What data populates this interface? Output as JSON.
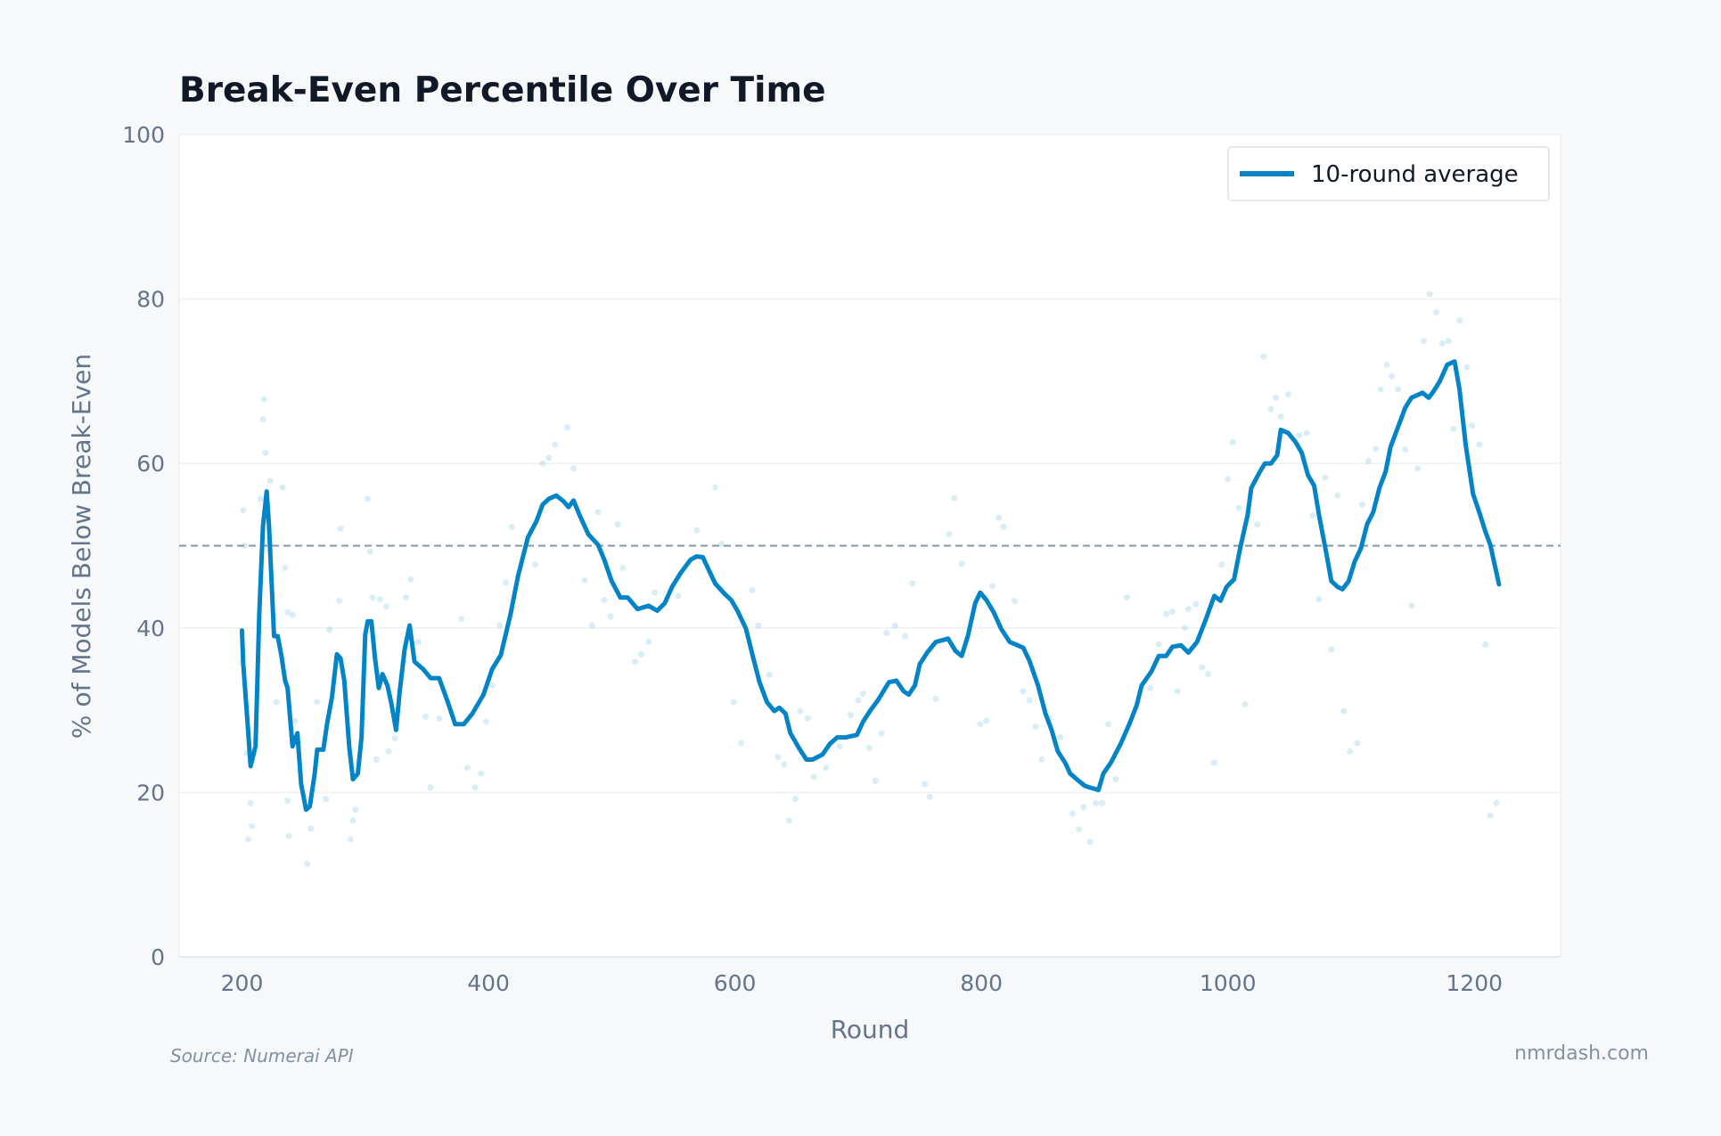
{
  "chart_data": {
    "type": "line",
    "title": "Break-Even Percentile Over Time",
    "xlabel": "Round",
    "ylabel": "% of Models Below Break-Even",
    "xlim": [
      149,
      1270
    ],
    "ylim": [
      0,
      100
    ],
    "xticks": [
      200,
      400,
      600,
      800,
      1000,
      1200
    ],
    "yticks": [
      0,
      20,
      40,
      60,
      80,
      100
    ],
    "grid": "horizontal",
    "legend_position": "top-right",
    "reference_line": {
      "y": 50,
      "style": "dashed",
      "color": "#8a95a3"
    },
    "series": [
      {
        "name": "10-round average",
        "type": "line",
        "color": "#0284c7",
        "x": [
          200,
          201,
          204,
          207,
          211,
          214,
          217,
          220,
          222,
          226,
          229,
          232,
          235,
          237,
          241,
          245,
          248,
          252,
          255,
          259,
          261,
          266,
          269,
          273,
          277,
          280,
          283,
          287,
          290,
          294,
          297,
          300,
          302,
          305,
          308,
          311,
          314,
          318,
          321,
          325,
          328,
          332,
          336,
          340,
          347,
          353,
          360,
          367,
          373,
          380,
          387,
          396,
          403,
          410,
          418,
          424,
          432,
          439,
          444,
          449,
          455,
          461,
          465,
          469,
          474,
          481,
          489,
          494,
          500,
          507,
          513,
          521,
          530,
          537,
          543,
          549,
          556,
          564,
          569,
          574,
          578,
          584,
          592,
          597,
          602,
          609,
          615,
          620,
          626,
          632,
          636,
          641,
          645,
          652,
          658,
          663,
          671,
          677,
          683,
          690,
          699,
          704,
          710,
          716,
          725,
          731,
          737,
          741,
          746,
          750,
          756,
          763,
          773,
          779,
          784,
          789,
          795,
          799,
          804,
          810,
          816,
          823,
          834,
          839,
          846,
          852,
          857,
          862,
          868,
          872,
          879,
          884,
          888,
          895,
          899,
          905,
          913,
          920,
          926,
          930,
          938,
          944,
          950,
          955,
          962,
          968,
          975,
          982,
          989,
          994,
          999,
          1005,
          1010,
          1016,
          1019,
          1026,
          1030,
          1035,
          1040,
          1043,
          1049,
          1055,
          1060,
          1065,
          1070,
          1074,
          1080,
          1084,
          1089,
          1093,
          1098,
          1103,
          1108,
          1113,
          1118,
          1123,
          1128,
          1132,
          1138,
          1144,
          1149,
          1155,
          1158,
          1163,
          1167,
          1172,
          1178,
          1184,
          1188,
          1193,
          1199,
          1204,
          1209,
          1213,
          1220
        ],
        "y": [
          39.7,
          35.7,
          29.6,
          23.2,
          25.6,
          41.7,
          52.3,
          56.6,
          52.3,
          39,
          39,
          36.6,
          33.6,
          32.7,
          25.6,
          27.2,
          21,
          17.9,
          18.3,
          22.3,
          25.2,
          25.2,
          28.3,
          31.6,
          36.8,
          36.3,
          33.6,
          25.6,
          21.6,
          22.3,
          26.7,
          39.2,
          40.8,
          40.8,
          36.3,
          32.7,
          34.4,
          33,
          31,
          27.6,
          32.3,
          37.4,
          40.3,
          35.9,
          35,
          33.9,
          33.9,
          31,
          28.3,
          28.3,
          29.6,
          31.9,
          35,
          36.7,
          41.7,
          46.3,
          51,
          53,
          55,
          55.7,
          56.1,
          55.4,
          54.7,
          55.5,
          53.7,
          51.4,
          50.1,
          48.3,
          45.7,
          43.7,
          43.7,
          42.3,
          42.7,
          42.1,
          43,
          45,
          46.7,
          48.3,
          48.7,
          48.6,
          47.3,
          45.4,
          44.1,
          43.4,
          42.1,
          39.9,
          36.3,
          33.4,
          31,
          29.9,
          30.3,
          29.6,
          27.2,
          25.4,
          24,
          24,
          24.6,
          25.9,
          26.7,
          26.7,
          27,
          28.6,
          30,
          31.2,
          33.4,
          33.6,
          32.3,
          31.9,
          33,
          35.6,
          37,
          38.3,
          38.7,
          37.2,
          36.6,
          39,
          43,
          44.3,
          43.4,
          41.9,
          39.9,
          38.3,
          37.6,
          36,
          33,
          29.6,
          27.6,
          25,
          23.6,
          22.3,
          21.4,
          20.8,
          20.6,
          20.3,
          22.3,
          23.6,
          25.9,
          28.3,
          30.6,
          33,
          34.7,
          36.6,
          36.6,
          37.7,
          37.9,
          37,
          38.3,
          41,
          43.9,
          43.3,
          45,
          45.9,
          49.7,
          53.7,
          57,
          59,
          60,
          60,
          61,
          64.1,
          63.7,
          62.6,
          61.3,
          58.6,
          57.3,
          53.7,
          49,
          45.7,
          45,
          44.7,
          45.7,
          48.1,
          49.7,
          52.6,
          54.1,
          57,
          59,
          62,
          64.4,
          66.8,
          68,
          68.4,
          68.6,
          68,
          68.8,
          70,
          72,
          72.4,
          69,
          62.3,
          56.3,
          54.1,
          51.7,
          50.1,
          45.3
        ]
      },
      {
        "type": "scatter",
        "color": "#0284c7",
        "opacity": 0.15,
        "x": [
          201,
          202,
          204,
          205,
          207,
          208,
          215,
          218,
          217,
          219,
          223,
          228,
          233,
          235,
          237,
          238,
          237,
          241,
          243,
          253,
          256,
          261,
          268,
          271,
          280,
          279,
          288,
          290,
          292,
          302,
          304,
          306,
          309,
          312,
          317,
          319,
          324,
          333,
          337,
          343,
          349,
          353,
          360,
          378,
          383,
          389,
          394,
          398,
          403,
          409,
          414,
          419,
          438,
          444,
          449,
          454,
          464,
          469,
          478,
          484,
          489,
          494,
          499,
          505,
          509,
          519,
          524,
          530,
          535,
          554,
          569,
          584,
          589,
          599,
          605,
          614,
          619,
          628,
          635,
          640,
          644,
          649,
          653,
          659,
          664,
          674,
          685,
          694,
          700,
          704,
          709,
          714,
          719,
          723,
          730,
          738,
          744,
          754,
          758,
          763,
          774,
          778,
          784,
          799,
          804,
          809,
          814,
          818,
          827,
          834,
          839,
          844,
          849,
          855,
          864,
          874,
          879,
          883,
          888,
          893,
          898,
          903,
          909,
          918,
          937,
          944,
          950,
          955,
          959,
          965,
          968,
          974,
          979,
          984,
          989,
          995,
          1000,
          1004,
          1009,
          1014,
          1024,
          1029,
          1035,
          1039,
          1043,
          1049,
          1058,
          1064,
          1069,
          1074,
          1079,
          1084,
          1089,
          1094,
          1099,
          1105,
          1109,
          1114,
          1120,
          1124,
          1129,
          1133,
          1138,
          1144,
          1149,
          1154,
          1159,
          1164,
          1169,
          1174,
          1179,
          1183,
          1188,
          1194,
          1198,
          1204,
          1209,
          1213,
          1218
        ],
        "y": [
          54.3,
          50,
          24.8,
          14.3,
          18.7,
          15.9,
          55.7,
          67.8,
          65.4,
          61.3,
          57.9,
          31,
          57.1,
          47.3,
          41.9,
          14.7,
          19,
          41.6,
          28.7,
          11.3,
          15.6,
          31,
          19.2,
          39.8,
          52.1,
          43.3,
          14.3,
          16.6,
          17.9,
          55.7,
          49.3,
          43.7,
          24,
          43.5,
          42.6,
          25,
          26.6,
          43.7,
          45.9,
          38.3,
          29.2,
          20.6,
          29,
          41.1,
          23,
          20.6,
          22.3,
          28.6,
          33,
          40.3,
          45.5,
          52.3,
          47.7,
          60,
          60.7,
          62.3,
          64.4,
          59.4,
          45.8,
          40.3,
          54.1,
          43.4,
          41.4,
          52.6,
          47.3,
          35.9,
          36.8,
          38.3,
          44.3,
          43.9,
          51.9,
          57.1,
          50.2,
          31,
          26,
          44.6,
          40.3,
          34.3,
          24.3,
          23.4,
          16.6,
          19.2,
          29.9,
          29,
          21.9,
          23,
          25.6,
          29.4,
          31.2,
          32,
          25.4,
          21.4,
          27.2,
          39.4,
          40.3,
          39,
          45.4,
          21,
          19.5,
          31.4,
          51.4,
          55.8,
          47.8,
          28.3,
          28.7,
          45.1,
          53.4,
          52.3,
          43.3,
          32.3,
          31.2,
          28,
          24,
          29,
          26.7,
          17.4,
          15.5,
          18.2,
          14,
          18.7,
          18.7,
          28.3,
          21.6,
          43.7,
          32.7,
          38,
          41.7,
          42,
          32.3,
          40,
          42.3,
          42.9,
          35.2,
          34.4,
          23.6,
          47.7,
          58.1,
          62.6,
          54.6,
          30.7,
          52.6,
          73,
          66.6,
          68,
          65.7,
          68.4,
          63.4,
          63.7,
          53.7,
          43.5,
          58.3,
          37.4,
          56.1,
          29.9,
          25,
          26,
          55,
          60.3,
          61.8,
          69,
          72,
          70.6,
          69,
          61.7,
          42.7,
          59.4,
          74.9,
          80.6,
          78.4,
          74.6,
          74.9,
          64.2,
          77.4,
          71.7,
          64.6,
          62.3,
          38,
          17.2,
          18.7
        ]
      }
    ]
  },
  "footer": {
    "source": "Source: Numerai API",
    "brand": "nmrdash.com"
  },
  "colors": {
    "background": "#f7f8fa",
    "plot_background": "#ffffff",
    "accent": "#0284c7",
    "title": "#111827",
    "muted": "#64748b"
  }
}
